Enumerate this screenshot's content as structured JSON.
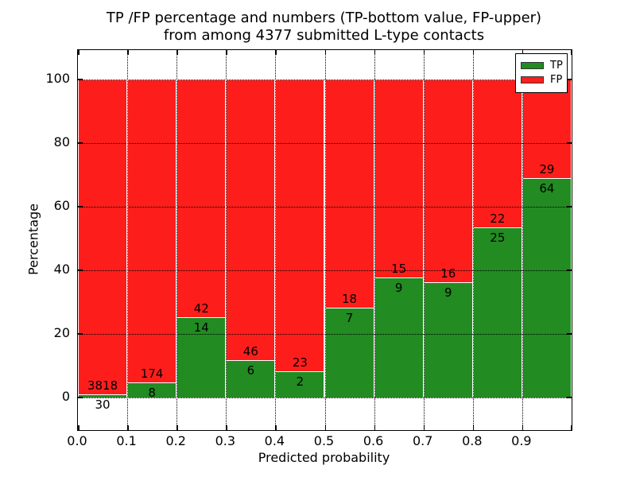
{
  "figure": {
    "title_line1": "TP /FP percentage and numbers (TP-bottom value, FP-upper)",
    "title_line2": "from among 4377 submitted L-type contacts",
    "xlabel": "Predicted probability",
    "ylabel": "Percentage"
  },
  "legend": {
    "position": "upper right",
    "items": [
      {
        "label": "TP",
        "color": "#228B22"
      },
      {
        "label": "FP",
        "color": "#FD1E1C"
      }
    ]
  },
  "axes": {
    "x_tick_labels": [
      "0.0",
      "0.1",
      "0.2",
      "0.3",
      "0.4",
      "0.5",
      "0.6",
      "0.7",
      "0.8",
      "0.9"
    ],
    "y_tick_labels": [
      "0",
      "20",
      "40",
      "60",
      "80",
      "100"
    ],
    "y_tick_values": [
      0,
      20,
      40,
      60,
      80,
      100
    ]
  },
  "chart_data": {
    "type": "bar",
    "stacked": true,
    "title": "TP /FP percentage and numbers (TP-bottom value, FP-upper) from among 4377 submitted L-type contacts",
    "xlabel": "Predicted probability",
    "ylabel": "Percentage",
    "total_contacts": 4377,
    "bin_edges": [
      0.0,
      0.1,
      0.2,
      0.3,
      0.4,
      0.5,
      0.6,
      0.7,
      0.8,
      0.9,
      1.0
    ],
    "series": [
      {
        "name": "TP",
        "color": "#228B22",
        "counts": [
          30,
          8,
          14,
          6,
          2,
          7,
          9,
          9,
          25,
          64
        ],
        "pct": [
          0.78,
          4.4,
          25.0,
          11.54,
          8.0,
          28.0,
          37.5,
          36.0,
          53.19,
          68.82
        ]
      },
      {
        "name": "FP",
        "color": "#FD1E1C",
        "counts": [
          3818,
          174,
          42,
          46,
          23,
          18,
          15,
          16,
          22,
          29
        ],
        "pct": [
          99.22,
          95.6,
          75.0,
          88.46,
          92.0,
          72.0,
          62.5,
          64.0,
          46.81,
          31.18
        ]
      }
    ],
    "xlim": [
      0.0,
      1.0
    ],
    "ylim": [
      -10.25,
      109.25
    ],
    "x_grid": [
      0.1,
      0.2,
      0.3,
      0.4,
      0.5,
      0.6,
      0.7,
      0.8,
      0.9
    ],
    "y_grid": [
      0,
      20,
      40,
      60,
      80,
      100
    ],
    "grid_style": "dotted",
    "legend_position": "upper right"
  }
}
